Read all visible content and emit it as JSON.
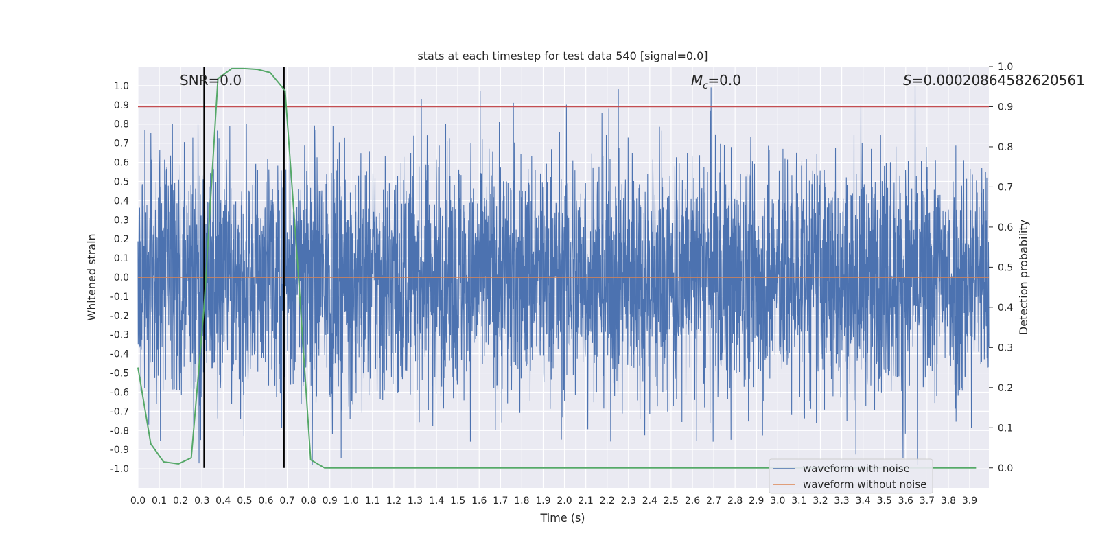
{
  "chart_data": {
    "type": "line",
    "title": "stats at each timestep for test data 540 [signal=0.0]",
    "xlabel": "Time (s)",
    "ylabel_left": "Whitened strain",
    "ylabel_right": "Detection probability",
    "xlim": [
      0.0,
      3.99
    ],
    "ylim_left": [
      -1.1,
      1.1
    ],
    "ylim_right": [
      -0.05,
      1.0
    ],
    "x_ticks": [
      "0.0",
      "0.1",
      "0.2",
      "0.3",
      "0.4",
      "0.5",
      "0.6",
      "0.7",
      "0.8",
      "0.9",
      "1.0",
      "1.1",
      "1.2",
      "1.3",
      "1.4",
      "1.5",
      "1.6",
      "1.7",
      "1.8",
      "1.9",
      "2.0",
      "2.1",
      "2.2",
      "2.3",
      "2.4",
      "2.5",
      "2.6",
      "2.7",
      "2.8",
      "2.9",
      "3.0",
      "3.1",
      "3.2",
      "3.3",
      "3.4",
      "3.5",
      "3.6",
      "3.7",
      "3.8",
      "3.9"
    ],
    "y_ticks_left": [
      "1.0",
      "0.9",
      "0.8",
      "0.7",
      "0.6",
      "0.5",
      "0.4",
      "0.3",
      "0.2",
      "0.1",
      "0.0",
      "-0.1",
      "-0.2",
      "-0.3",
      "-0.4",
      "-0.5",
      "-0.6",
      "-0.7",
      "-0.8",
      "-0.9",
      "-1.0"
    ],
    "y_ticks_right": [
      "1.0",
      "0.9",
      "0.8",
      "0.7",
      "0.6",
      "0.5",
      "0.4",
      "0.3",
      "0.2",
      "0.1",
      "0.0"
    ],
    "annotations": {
      "snr": "SNR=0.0",
      "mc_symbol": "M",
      "mc_subscript": "c",
      "mc_value": "=0.0",
      "s_symbol": "S",
      "s_value": "=0.00020864582620561"
    },
    "grid": true,
    "legend_position": "lower-right",
    "series": [
      {
        "name": "waveform with noise",
        "color": "#4c72b0",
        "axis": "left",
        "description_points": "noisy whitened strain, dense oscillation roughly between -0.9 and 1.0",
        "amplitude_envelope": 0.95
      },
      {
        "name": "waveform without noise",
        "color": "#dd8452",
        "axis": "left",
        "x": [
          0.0,
          3.99
        ],
        "y": [
          0.0,
          0.0
        ]
      },
      {
        "name": "",
        "color": "#55a868",
        "axis": "right",
        "x": [
          0.0,
          0.06,
          0.12,
          0.19,
          0.25,
          0.31,
          0.375,
          0.44,
          0.5,
          0.56,
          0.62,
          0.69,
          0.75,
          0.81,
          0.875,
          0.94,
          3.93
        ],
        "y": [
          0.25,
          0.06,
          0.015,
          0.01,
          0.025,
          0.4,
          0.97,
          0.995,
          0.995,
          0.993,
          0.985,
          0.94,
          0.5,
          0.02,
          0.0,
          0.0,
          0.0
        ]
      }
    ],
    "threshold_line": {
      "y_right": 0.9,
      "color": "#c44e52"
    },
    "vertical_lines": {
      "x": [
        0.31,
        0.685
      ],
      "color": "#000000",
      "y_range_right": [
        0.0,
        1.0
      ]
    }
  }
}
